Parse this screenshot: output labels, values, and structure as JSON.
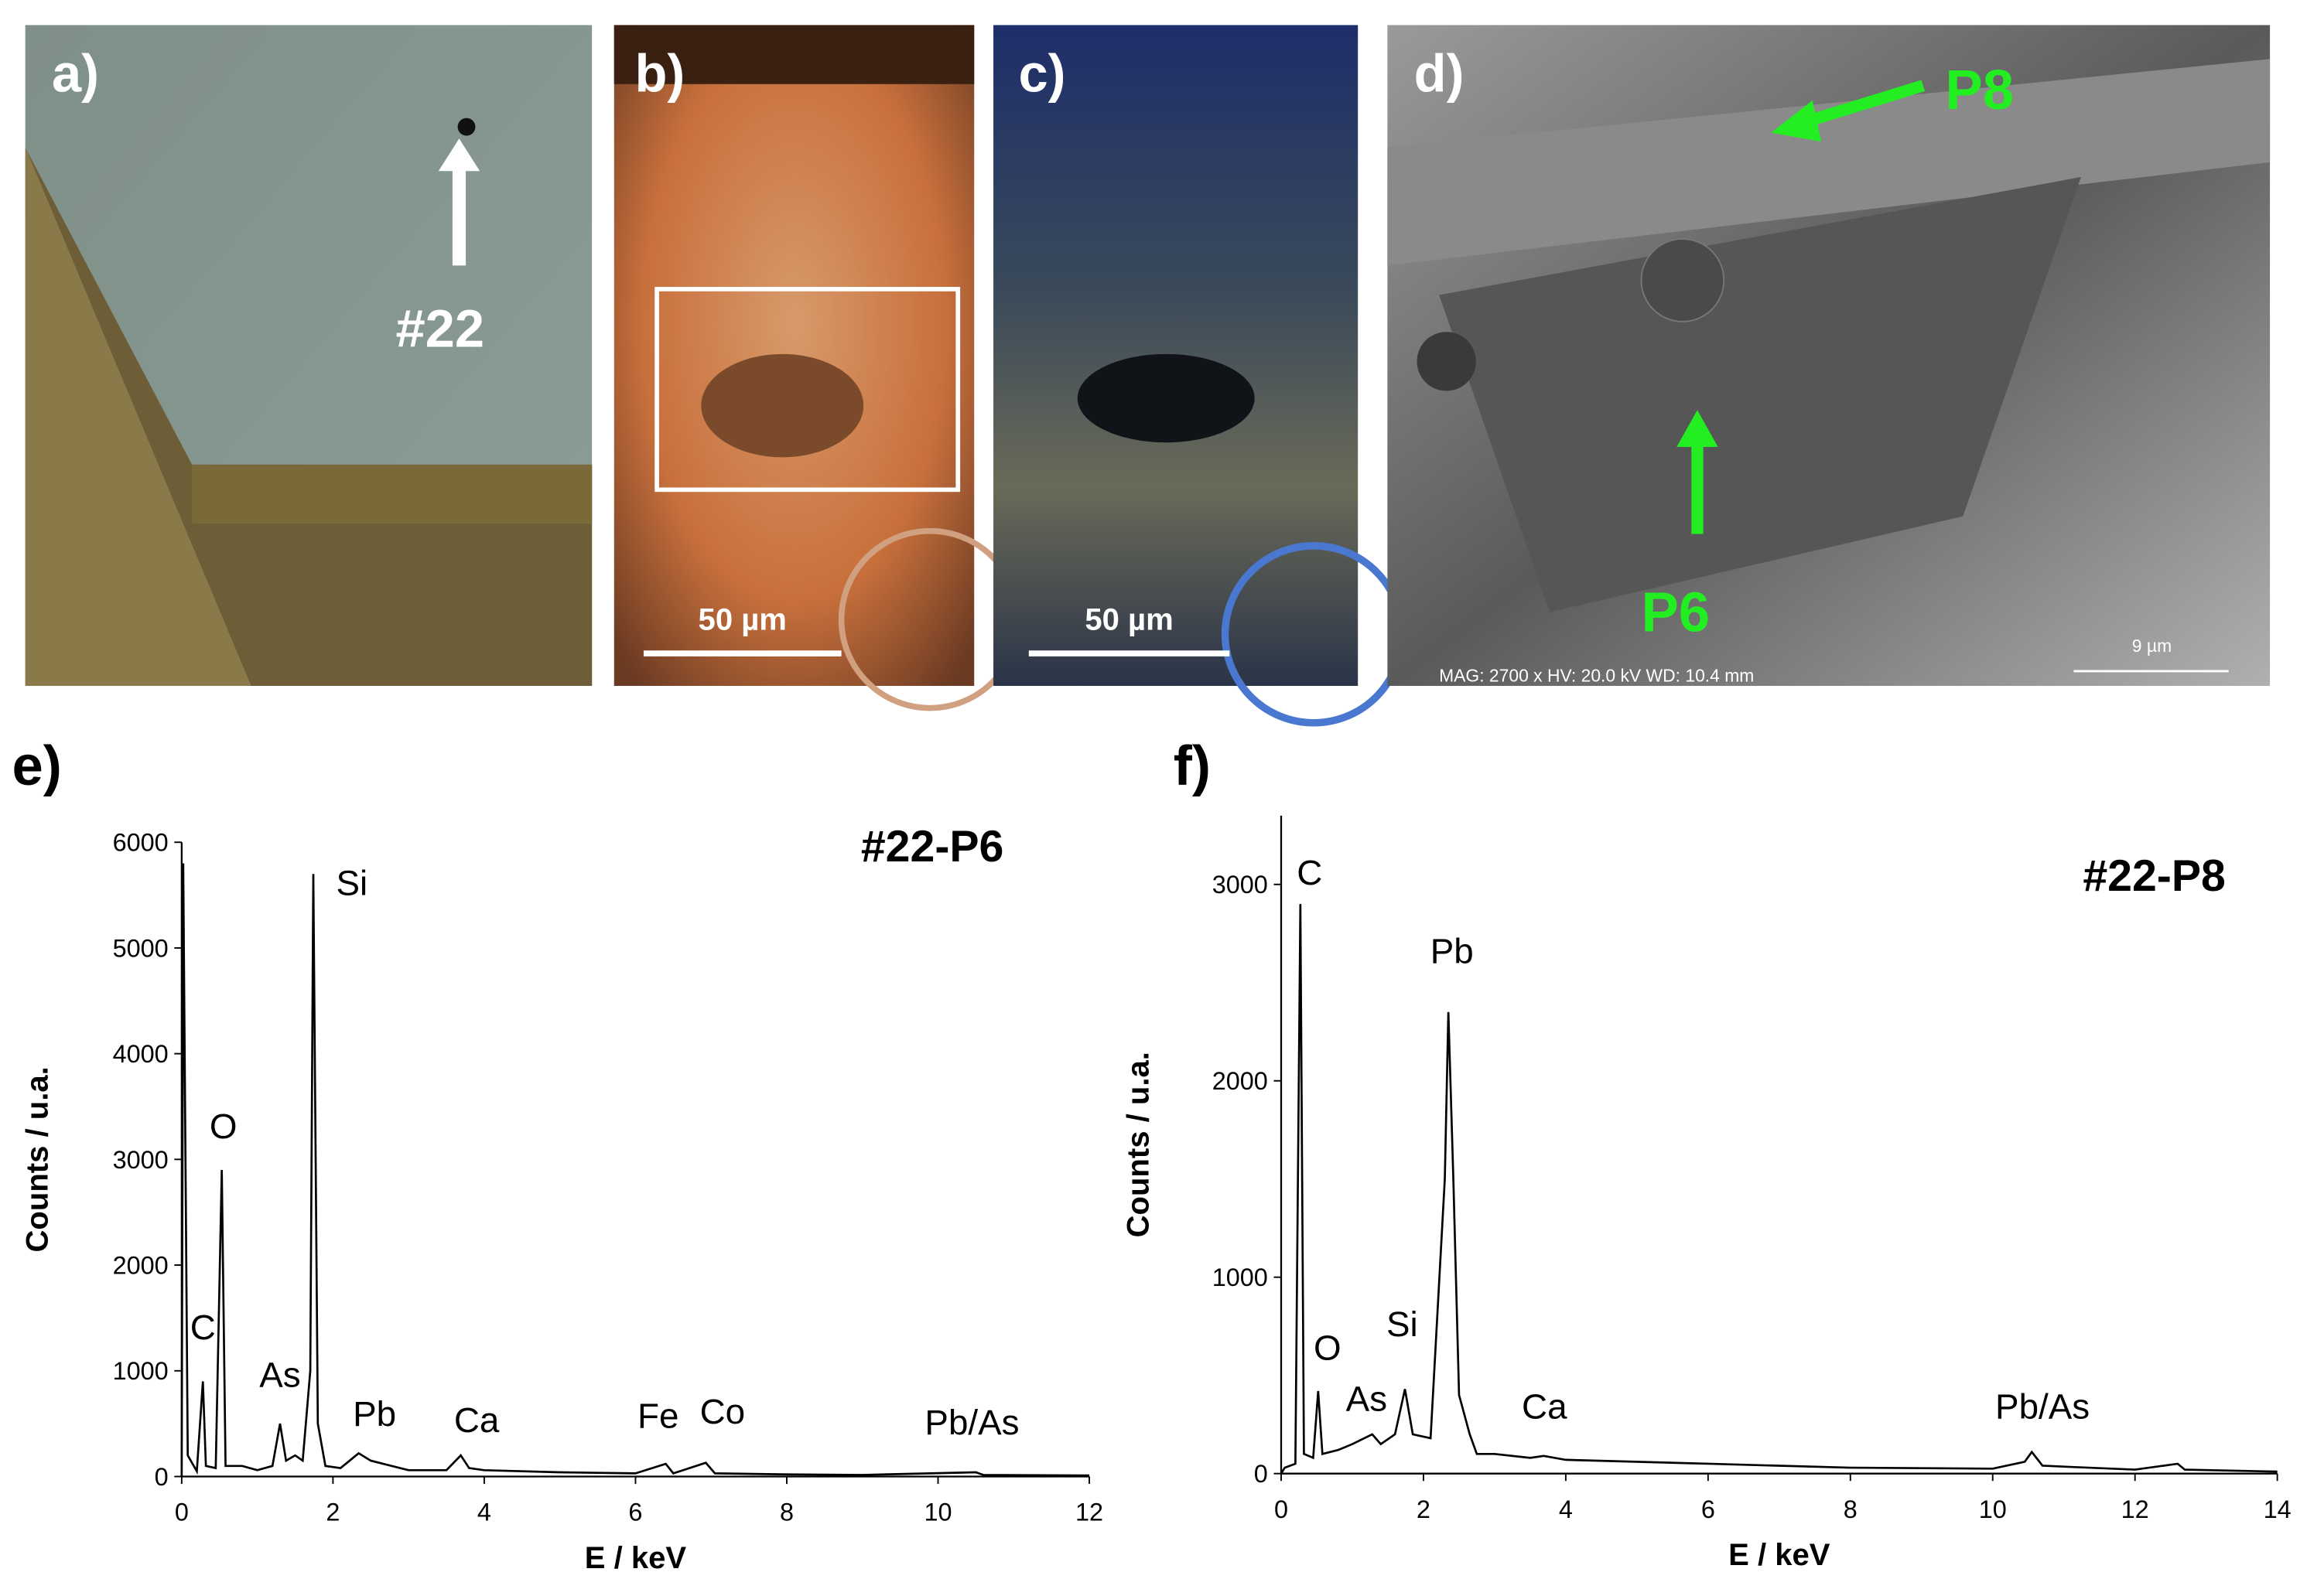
{
  "panels": {
    "a": "a)",
    "a_tag": "#22",
    "b": "b)",
    "b_scale": "50 µm",
    "c": "c)",
    "c_scale": "50 µm",
    "d": "d)",
    "d_p8": "P8",
    "d_p6": "P6",
    "d_info": "MAG: 2700 x  HV: 20.0 kV  WD: 10.4 mm",
    "d_scale": "9 µm",
    "e": "e)",
    "f": "f)"
  },
  "chart_data": [
    {
      "type": "line",
      "title": "#22-P6",
      "xlabel": "E / keV",
      "ylabel": "Counts / u.a.",
      "xlim": [
        0,
        12
      ],
      "ylim": [
        0,
        6000
      ],
      "xticks": [
        0,
        2,
        4,
        6,
        8,
        10,
        12
      ],
      "yticks": [
        0,
        1000,
        2000,
        3000,
        4000,
        5000,
        6000
      ],
      "color": "#000000",
      "x": [
        0,
        0.02,
        0.08,
        0.2,
        0.28,
        0.32,
        0.45,
        0.53,
        0.58,
        0.8,
        1.0,
        1.2,
        1.3,
        1.38,
        1.5,
        1.6,
        1.7,
        1.74,
        1.8,
        1.9,
        2.1,
        2.34,
        2.5,
        3.0,
        3.5,
        3.69,
        3.8,
        4.0,
        5.0,
        6.0,
        6.4,
        6.5,
        6.93,
        7.05,
        8,
        9,
        10.5,
        10.6,
        12
      ],
      "values": [
        0,
        5800,
        200,
        50,
        900,
        100,
        80,
        2900,
        100,
        100,
        60,
        100,
        500,
        150,
        200,
        150,
        1000,
        5700,
        500,
        100,
        80,
        220,
        150,
        60,
        60,
        200,
        80,
        60,
        40,
        30,
        120,
        30,
        130,
        30,
        20,
        15,
        40,
        15,
        10
      ],
      "annotations": [
        {
          "text": "C",
          "x": 0.28,
          "y": 1300
        },
        {
          "text": "O",
          "x": 0.55,
          "y": 3200
        },
        {
          "text": "Si",
          "x": 2.25,
          "y": 5500
        },
        {
          "text": "As",
          "x": 1.3,
          "y": 850
        },
        {
          "text": "Pb",
          "x": 2.55,
          "y": 480
        },
        {
          "text": "Ca",
          "x": 3.9,
          "y": 420
        },
        {
          "text": "Fe",
          "x": 6.3,
          "y": 460
        },
        {
          "text": "Co",
          "x": 7.15,
          "y": 500
        },
        {
          "text": "Pb/As",
          "x": 10.45,
          "y": 400
        }
      ]
    },
    {
      "type": "line",
      "title": "#22-P8",
      "xlabel": "E / keV",
      "ylabel": "Counts / u.a.",
      "xlim": [
        0,
        14
      ],
      "ylim": [
        0,
        3350
      ],
      "xticks": [
        0,
        2,
        4,
        6,
        8,
        10,
        12,
        14
      ],
      "yticks": [
        0,
        1000,
        2000,
        3000
      ],
      "color": "#000000",
      "x": [
        0,
        0.05,
        0.2,
        0.27,
        0.32,
        0.45,
        0.52,
        0.58,
        0.8,
        1.0,
        1.28,
        1.4,
        1.6,
        1.74,
        1.85,
        2.1,
        2.3,
        2.35,
        2.42,
        2.5,
        2.65,
        2.75,
        3,
        3.5,
        3.69,
        4,
        6,
        8,
        10,
        10.45,
        10.55,
        10.7,
        12,
        12.6,
        12.7,
        14
      ],
      "values": [
        0,
        30,
        50,
        2900,
        100,
        80,
        420,
        100,
        120,
        150,
        200,
        150,
        200,
        430,
        200,
        180,
        1500,
        2350,
        1500,
        400,
        200,
        100,
        100,
        80,
        90,
        70,
        50,
        30,
        25,
        60,
        110,
        40,
        20,
        50,
        20,
        10
      ],
      "annotations": [
        {
          "text": "C",
          "x": 0.4,
          "y": 3000
        },
        {
          "text": "O",
          "x": 0.65,
          "y": 580
        },
        {
          "text": "As",
          "x": 1.2,
          "y": 320
        },
        {
          "text": "Si",
          "x": 1.7,
          "y": 700
        },
        {
          "text": "Pb",
          "x": 2.4,
          "y": 2600
        },
        {
          "text": "Ca",
          "x": 3.7,
          "y": 280
        },
        {
          "text": "Pb/As",
          "x": 10.7,
          "y": 280
        }
      ]
    }
  ]
}
